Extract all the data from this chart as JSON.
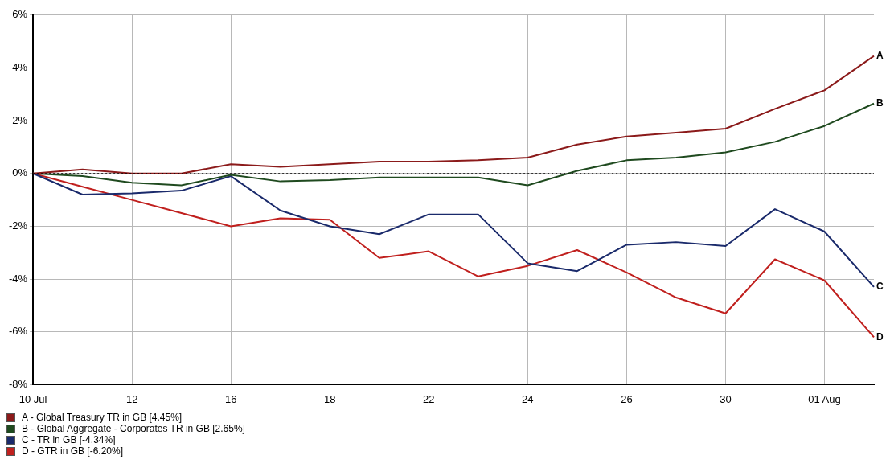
{
  "chart_data": {
    "type": "line",
    "categories": [
      "10 Jul",
      null,
      "12",
      null,
      "16",
      null,
      "18",
      null,
      "22",
      null,
      "24",
      null,
      "26",
      null,
      "30",
      null,
      "01 Aug",
      null
    ],
    "series": [
      {
        "name": "A - Global Treasury TR in GB [4.45%]",
        "color": "#8b1a1a",
        "values": [
          0,
          0.15,
          0,
          0,
          0.35,
          0.25,
          0.35,
          0.45,
          0.45,
          0.5,
          0.6,
          1.1,
          1.4,
          1.55,
          1.7,
          2.45,
          3.15,
          4.45
        ]
      },
      {
        "name": "B - Global Aggregate - Corporates TR in GB [2.65%]",
        "color": "#1f4a1f",
        "values": [
          0,
          -0.1,
          -0.35,
          -0.45,
          -0.05,
          -0.3,
          -0.25,
          -0.15,
          -0.15,
          -0.15,
          -0.45,
          0.1,
          0.5,
          0.6,
          0.8,
          1.2,
          1.8,
          2.65
        ]
      },
      {
        "name": "C - TR in GB [-4.34%]",
        "color": "#1a2a6b",
        "values": [
          0,
          -0.8,
          -0.75,
          -0.65,
          -0.1,
          -1.4,
          -2.0,
          -2.3,
          -1.55,
          -1.55,
          -3.4,
          -3.7,
          -2.7,
          -2.6,
          -2.75,
          -1.35,
          -2.2,
          -4.3
        ]
      },
      {
        "name": "D - GTR in GB [-6.20%]",
        "color": "#c0201e",
        "values": [
          0,
          -0.5,
          -1.0,
          -1.5,
          -2.0,
          -1.7,
          -1.75,
          -3.2,
          -2.95,
          -3.9,
          -3.5,
          -2.9,
          -3.75,
          -4.7,
          -5.3,
          -3.25,
          -4.05,
          -6.2
        ]
      }
    ],
    "annotations": [
      "A",
      "B",
      "C",
      "D"
    ],
    "ref_lines": [
      {
        "axis": "y",
        "value": 0,
        "color": "#000000",
        "line_style": "dotted"
      }
    ],
    "ylim": [
      -8,
      6
    ],
    "yticks": [
      {
        "value": -8,
        "label": "-8%"
      },
      {
        "value": -6,
        "label": "-6%"
      },
      {
        "value": -4,
        "label": "-4%"
      },
      {
        "value": -2,
        "label": "-2%"
      },
      {
        "value": 0,
        "label": "0%"
      },
      {
        "value": 2,
        "label": "2%"
      },
      {
        "value": 4,
        "label": "4%"
      },
      {
        "value": 6,
        "label": "6%"
      }
    ],
    "grid": true,
    "legend": "bottom left",
    "marker": "none",
    "line_style": "solid"
  }
}
